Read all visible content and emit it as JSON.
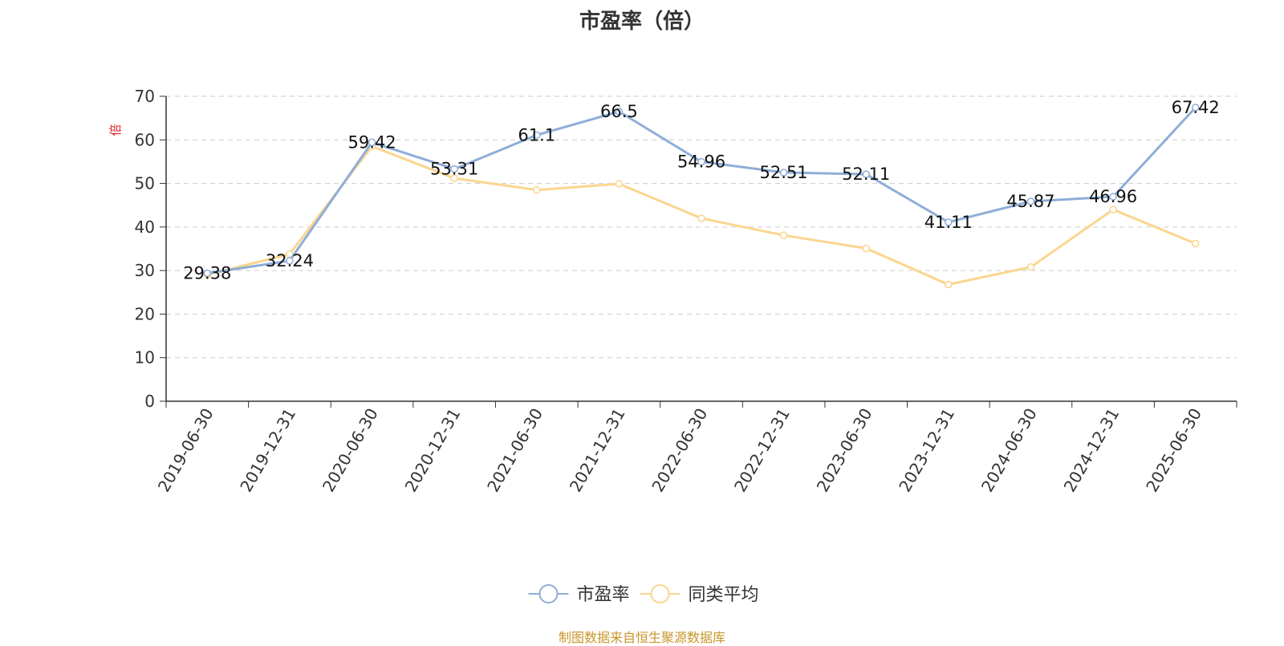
{
  "chart_data": {
    "type": "line",
    "title": "市盈率（倍）",
    "ylabel": "倍",
    "categories": [
      "2019-06-30",
      "2019-12-31",
      "2020-06-30",
      "2020-12-31",
      "2021-06-30",
      "2021-12-31",
      "2022-06-30",
      "2022-12-31",
      "2023-06-30",
      "2023-12-31",
      "2024-06-30",
      "2024-12-31",
      "2025-06-30"
    ],
    "ylim": [
      0,
      70
    ],
    "yticks": [
      0,
      10,
      20,
      30,
      40,
      50,
      60,
      70
    ],
    "grid": true,
    "legend_position": "bottom",
    "series": [
      {
        "name": "市盈率",
        "color": "#8eaed8",
        "show_labels": true,
        "values": [
          29.38,
          32.24,
          59.42,
          53.31,
          61.1,
          66.5,
          54.96,
          52.51,
          52.11,
          41.11,
          45.87,
          46.96,
          67.42
        ]
      },
      {
        "name": "同类平均",
        "color": "#fbd58f",
        "show_labels": false,
        "values": [
          29.0,
          33.8,
          58.5,
          51.2,
          48.5,
          49.9,
          42.0,
          38.1,
          35.1,
          26.8,
          30.8,
          44.0,
          36.2
        ]
      }
    ]
  },
  "source_note": "制图数据来自恒生聚源数据库"
}
